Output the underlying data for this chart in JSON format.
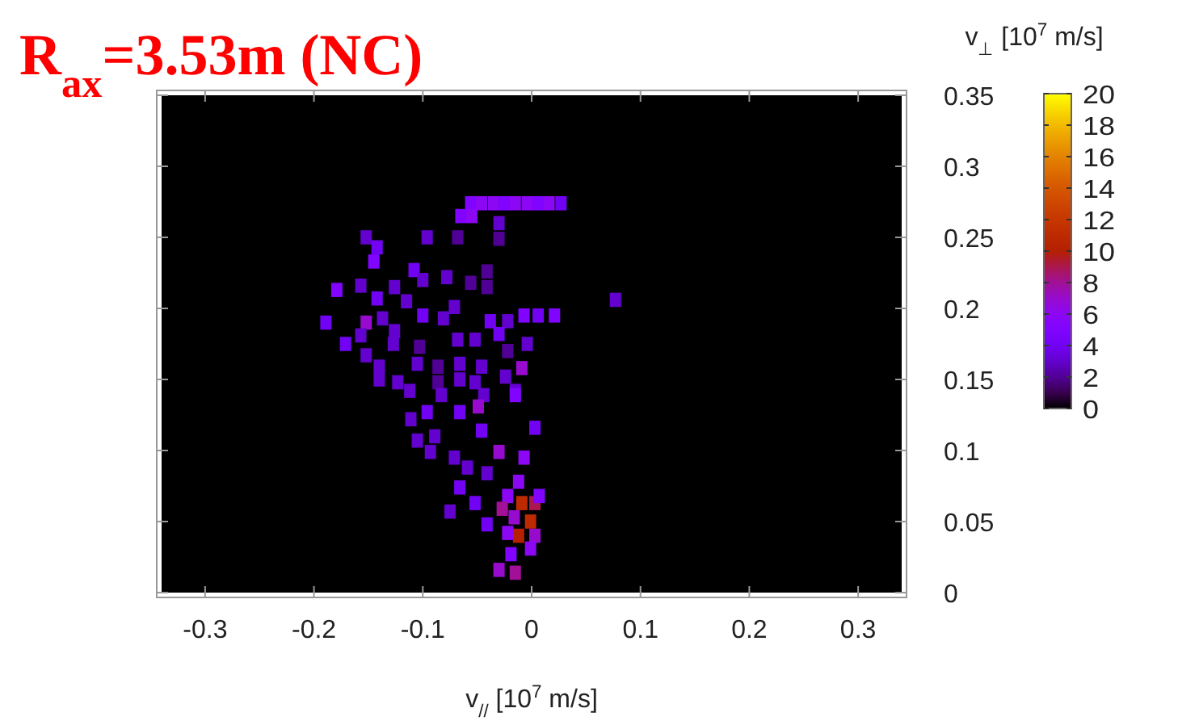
{
  "chart_data": {
    "type": "scatter",
    "title": "R$_{ax}$=3.53m (NC)",
    "xlabel": "v$_{//}$ [10$^{7}$ m/s]",
    "ylabel": "v$_{⊥}$ [10$^{7}$ m/s]",
    "marker": "square",
    "xlim": [
      -0.34,
      0.34
    ],
    "xticks": [
      -0.3,
      -0.2,
      -0.1,
      0,
      0.1,
      0.2,
      0.3
    ],
    "ylim": [
      0,
      0.35
    ],
    "yticks": [
      0,
      0.05,
      0.1,
      0.15,
      0.2,
      0.25,
      0.3,
      0.35
    ],
    "clim": [
      0,
      20
    ],
    "cticks": [
      0,
      2,
      4,
      6,
      8,
      10,
      12,
      14,
      16,
      18,
      20
    ],
    "grid": false,
    "x": [
      -0.056,
      -0.046,
      -0.035,
      -0.025,
      -0.015,
      -0.004,
      0.006,
      0.016,
      0.027,
      -0.065,
      -0.055,
      -0.152,
      -0.142,
      -0.145,
      -0.096,
      -0.068,
      -0.03,
      -0.03,
      -0.108,
      -0.1,
      -0.078,
      -0.041,
      -0.179,
      -0.157,
      -0.142,
      -0.126,
      -0.115,
      -0.056,
      -0.041,
      0.077,
      -0.1,
      -0.081,
      -0.071,
      -0.038,
      -0.022,
      -0.007,
      0.006,
      0.021,
      -0.189,
      -0.152,
      -0.137,
      -0.171,
      -0.157,
      -0.126,
      -0.127,
      -0.103,
      -0.068,
      -0.052,
      -0.03,
      -0.004,
      -0.022,
      -0.152,
      -0.14,
      -0.105,
      -0.086,
      -0.066,
      -0.046,
      -0.009,
      -0.024,
      -0.14,
      -0.123,
      -0.112,
      -0.086,
      -0.066,
      -0.052,
      -0.044,
      -0.015,
      -0.111,
      -0.096,
      -0.089,
      -0.105,
      -0.049,
      -0.066,
      -0.083,
      -0.015,
      -0.03,
      -0.046,
      -0.007,
      0.003,
      -0.071,
      -0.059,
      -0.041,
      -0.093,
      -0.066,
      -0.052,
      -0.041,
      -0.075,
      -0.022,
      -0.012,
      -0.009,
      0.003,
      -0.001,
      -0.016,
      -0.012,
      0.003,
      0.007,
      -0.022,
      -0.001,
      -0.03,
      -0.015,
      -0.019,
      -0.027
    ],
    "values": [
      0.274,
      0.274,
      0.274,
      0.274,
      0.274,
      0.274,
      0.274,
      0.274,
      0.274,
      0.265,
      0.265,
      0.25,
      0.243,
      0.233,
      0.25,
      0.25,
      0.26,
      0.249,
      0.227,
      0.22,
      0.222,
      0.226,
      0.213,
      0.216,
      0.207,
      0.215,
      0.205,
      0.218,
      0.215,
      0.206,
      0.195,
      0.193,
      0.201,
      0.191,
      0.191,
      0.195,
      0.195,
      0.195,
      0.19,
      0.19,
      0.193,
      0.175,
      0.181,
      0.184,
      0.175,
      0.173,
      0.178,
      0.178,
      0.182,
      0.175,
      0.17,
      0.167,
      0.159,
      0.161,
      0.159,
      0.161,
      0.159,
      0.158,
      0.152,
      0.15,
      0.148,
      0.142,
      0.148,
      0.15,
      0.148,
      0.139,
      0.142,
      0.122,
      0.127,
      0.11,
      0.107,
      0.131,
      0.127,
      0.139,
      0.139,
      0.099,
      0.114,
      0.095,
      0.116,
      0.095,
      0.088,
      0.084,
      0.099,
      0.074,
      0.063,
      0.048,
      0.057,
      0.068,
      0.078,
      0.063,
      0.063,
      0.05,
      0.053,
      0.04,
      0.04,
      0.068,
      0.042,
      0.031,
      0.016,
      0.014,
      0.027,
      0.059
    ],
    "cvalues": [
      5,
      6,
      6,
      5,
      6,
      6,
      5,
      6,
      4,
      5,
      6,
      3,
      4,
      5,
      3,
      2,
      3,
      2,
      4,
      3,
      3,
      2,
      5,
      3,
      4,
      3,
      3,
      2,
      2,
      3,
      4,
      3,
      3,
      4,
      3,
      5,
      4,
      5,
      4,
      7,
      3,
      4,
      3,
      3,
      3,
      2,
      3,
      3,
      4,
      3,
      2,
      3,
      3,
      3,
      2,
      3,
      3,
      7,
      3,
      3,
      3,
      3,
      2,
      3,
      3,
      3,
      3,
      3,
      4,
      3,
      3,
      7,
      4,
      3,
      5,
      7,
      4,
      6,
      4,
      3,
      3,
      3,
      3,
      4,
      4,
      4,
      3,
      6,
      6,
      11,
      9,
      11,
      7,
      10,
      7,
      5,
      6,
      6,
      7,
      8,
      5,
      8
    ]
  }
}
